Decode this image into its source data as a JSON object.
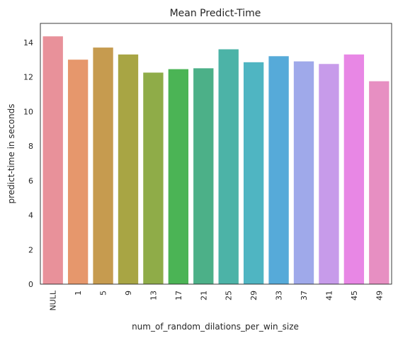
{
  "chart_data": {
    "type": "bar",
    "title": "Mean Predict-Time",
    "xlabel": "num_of_random_dilations_per_win_size",
    "ylabel": "predict-time in seconds",
    "categories": [
      "NULL",
      "1",
      "5",
      "9",
      "13",
      "17",
      "21",
      "25",
      "29",
      "33",
      "37",
      "41",
      "45",
      "49"
    ],
    "values": [
      14.35,
      13.0,
      13.7,
      13.3,
      12.25,
      12.45,
      12.5,
      13.6,
      12.85,
      13.2,
      12.9,
      12.75,
      13.3,
      11.75
    ],
    "colors": [
      "#e8919a",
      "#e6976c",
      "#c69b4f",
      "#a8a544",
      "#8fac48",
      "#4bb455",
      "#4cb088",
      "#4cb3a7",
      "#4fb5c2",
      "#56aad9",
      "#9fa9ea",
      "#c79bea",
      "#e887e5",
      "#e78fc2"
    ],
    "yticks": [
      0,
      2,
      4,
      6,
      8,
      10,
      12,
      14
    ],
    "ylim": [
      0,
      15.1
    ],
    "grid": false,
    "legend": "none"
  }
}
